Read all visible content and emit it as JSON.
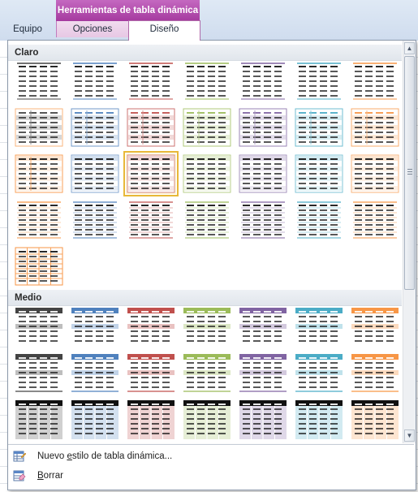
{
  "ribbon": {
    "context_header": "Herramientas de tabla dinámica",
    "tabs": [
      {
        "label": "Equipo"
      },
      {
        "label": "Opciones"
      },
      {
        "label": "Diseño"
      }
    ]
  },
  "gallery": {
    "sections": [
      {
        "title": "Claro"
      },
      {
        "title": "Medio"
      }
    ],
    "selected_style": {
      "section": "Claro",
      "row": 3,
      "column": 3
    }
  },
  "styles": {
    "dark_color": "#111111",
    "palette": [
      "#444444",
      "#4f81bd",
      "#c0504d",
      "#9bbb59",
      "#8064a2",
      "#4bacc6",
      "#f79646"
    ],
    "selection_color": "#e8b838"
  },
  "menu": {
    "new_style": {
      "prefix": "Nuevo ",
      "accesskey": "e",
      "suffix": "stilo de tabla dinámica..."
    },
    "clear": {
      "prefix": "",
      "accesskey": "B",
      "suffix": "orrar"
    }
  }
}
